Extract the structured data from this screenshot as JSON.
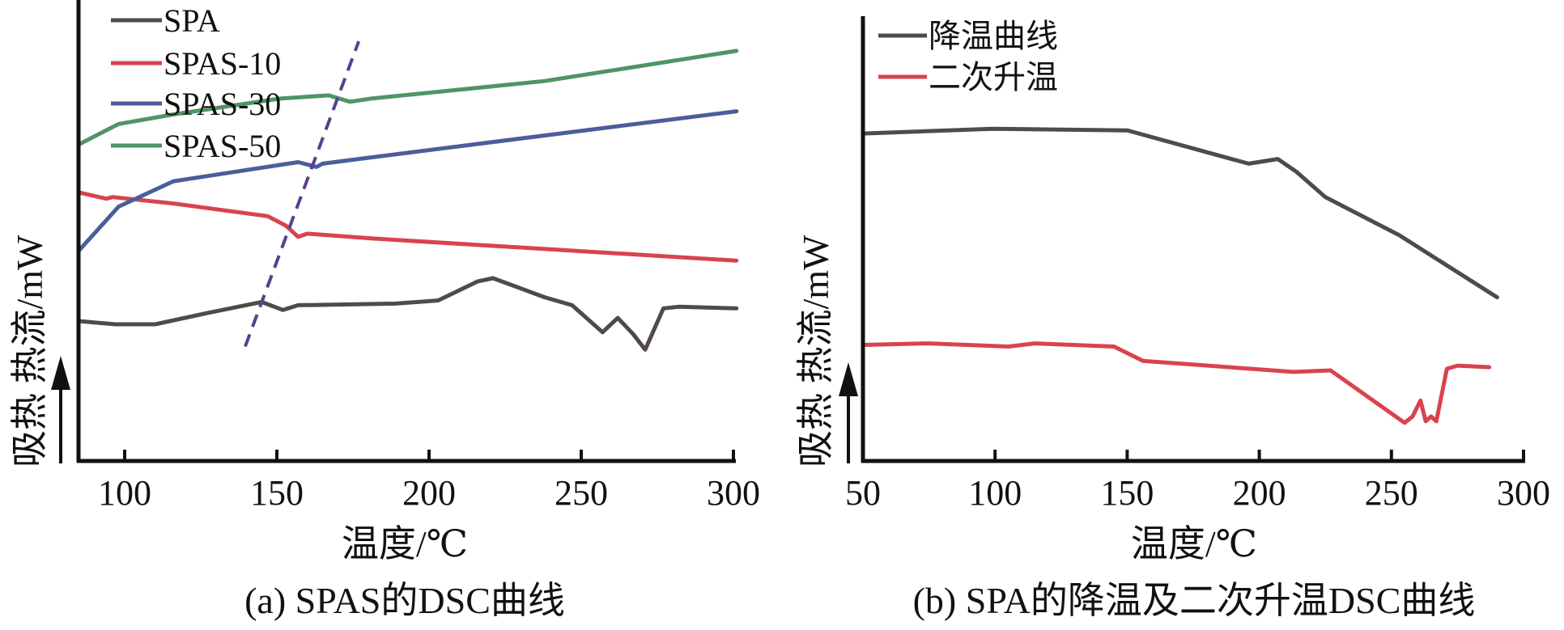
{
  "chart_data": [
    {
      "id": "a",
      "type": "line",
      "caption": "(a) SPAS的DSC曲线",
      "xlabel": "温度/℃",
      "ylabel": "吸热  热流/mW",
      "ylabel_arrow": "up",
      "xlim": [
        84.8,
        300
      ],
      "xticks": [
        100,
        150,
        200,
        250,
        300
      ],
      "grid": false,
      "legend": "top-left",
      "y_units": "relative (no numeric ticks)",
      "series": [
        {
          "name": "SPA",
          "color": "#514a47",
          "x": [
            84.8,
            97,
            110,
            127,
            145,
            152,
            157,
            189,
            203,
            216,
            221,
            238,
            247,
            257,
            262,
            267,
            271,
            277,
            282,
            301
          ],
          "y": [
            4.4,
            4.3,
            4.3,
            4.65,
            5.0,
            4.75,
            4.9,
            4.95,
            5.05,
            5.65,
            5.75,
            5.15,
            4.9,
            4.05,
            4.5,
            4.0,
            3.5,
            4.8,
            4.85,
            4.8
          ]
        },
        {
          "name": "SPAS-10",
          "color": "#d9434e",
          "x": [
            84.8,
            94,
            96,
            116,
            147,
            153,
            157,
            160,
            181,
            301
          ],
          "y": [
            8.45,
            8.25,
            8.3,
            8.1,
            7.7,
            7.4,
            7.05,
            7.15,
            7.0,
            6.3
          ]
        },
        {
          "name": "SPAS-30",
          "color": "#4a5e9a",
          "x": [
            84.8,
            98,
            116,
            157,
            163,
            165,
            181,
            301
          ],
          "y": [
            6.6,
            8.0,
            8.8,
            9.4,
            9.25,
            9.35,
            9.55,
            11.0
          ]
        },
        {
          "name": "SPAS-50",
          "color": "#4f9468",
          "x": [
            84.8,
            98,
            116,
            151,
            167,
            174,
            181,
            238,
            301
          ],
          "y": [
            9.95,
            10.6,
            10.9,
            11.4,
            11.5,
            11.3,
            11.4,
            11.95,
            12.9
          ]
        }
      ],
      "annotations": [
        {
          "type": "dashed-line",
          "color": "#5b3f8f",
          "from": [
            139.6,
            3.6
          ],
          "to": [
            176.9,
            13.2
          ],
          "meaning": "glass transition trend"
        }
      ],
      "ylim": [
        0,
        14.5
      ]
    },
    {
      "id": "b",
      "type": "line",
      "caption": "(b) SPA的降温及二次升温DSC曲线",
      "xlabel": "温度/℃",
      "ylabel": "吸热  热流/mW",
      "ylabel_arrow": "up",
      "xlim": [
        50,
        300
      ],
      "xticks": [
        50,
        100,
        150,
        200,
        250,
        300
      ],
      "grid": false,
      "legend": "top-left",
      "y_units": "relative (no numeric ticks)",
      "series": [
        {
          "name": "降温曲线",
          "color": "#514a47",
          "x": [
            50,
            99,
            150,
            196,
            207,
            214,
            225,
            253,
            290
          ],
          "y": [
            10.3,
            10.45,
            10.4,
            9.35,
            9.5,
            9.1,
            8.3,
            7.1,
            5.15
          ]
        },
        {
          "name": "二次升温",
          "color": "#d9434e",
          "x": [
            50,
            75,
            105,
            115,
            145,
            156,
            213,
            227,
            255,
            258,
            261,
            263,
            265,
            267,
            271,
            275,
            287
          ],
          "y": [
            3.65,
            3.7,
            3.6,
            3.7,
            3.6,
            3.15,
            2.8,
            2.85,
            1.2,
            1.4,
            1.9,
            1.25,
            1.4,
            1.25,
            2.9,
            3.0,
            2.95
          ]
        }
      ],
      "ylim": [
        0,
        14.5
      ]
    }
  ]
}
